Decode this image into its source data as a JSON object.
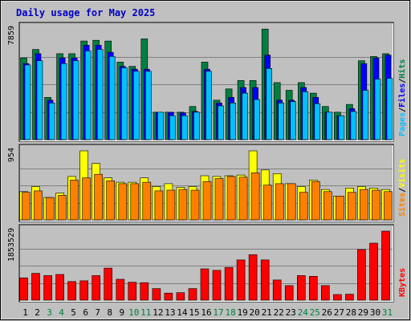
{
  "colors": {
    "background": "#c0c0c0",
    "title": "#0000c0",
    "hits": "#008040",
    "files": "#0000ff",
    "pages": "#00c0ff",
    "visits": "#ffff00",
    "sites": "#ff8000",
    "kbytes": "#ff0000",
    "weekend_day": "#008040",
    "weekday": "#000000"
  },
  "chart_data": {
    "type": "bar",
    "title": "Daily usage for May 2025",
    "days": [
      "1",
      "2",
      "3",
      "4",
      "5",
      "6",
      "7",
      "8",
      "9",
      "10",
      "11",
      "12",
      "13",
      "14",
      "15",
      "16",
      "17",
      "18",
      "19",
      "20",
      "21",
      "22",
      "23",
      "24",
      "25",
      "26",
      "27",
      "28",
      "29",
      "30",
      "31"
    ],
    "weekend_days": [
      "3",
      "4",
      "10",
      "11",
      "17",
      "18",
      "24",
      "25",
      "31"
    ],
    "panels": [
      {
        "name": "hits-files-pages",
        "max_label": "7859",
        "ymax": 7859,
        "legend": [
          "Pages",
          "/",
          "Files",
          "/",
          "Hits"
        ],
        "series": [
          {
            "name": "Hits",
            "values": [
              5800,
              6400,
              3000,
              6100,
              6100,
              7000,
              7050,
              7000,
              5500,
              5200,
              7150,
              1950,
              1950,
              1950,
              2350,
              5500,
              2800,
              3600,
              4200,
              4200,
              7850,
              4050,
              3500,
              4050,
              3300,
              2350,
              1950,
              2500,
              5600,
              5900,
              6100
            ]
          },
          {
            "name": "Files",
            "values": [
              5400,
              6100,
              2800,
              5800,
              5800,
              6700,
              6700,
              6200,
              5200,
              5000,
              5000,
              1950,
              1950,
              1900,
              2000,
              5000,
              2600,
              3000,
              3700,
              3700,
              6000,
              2800,
              2800,
              3700,
              3000,
              1950,
              1700,
              2200,
              5400,
              5800,
              6000
            ]
          },
          {
            "name": "Pages",
            "values": [
              5300,
              5600,
              2600,
              5400,
              5600,
              6300,
              6400,
              5900,
              5100,
              4850,
              4850,
              1950,
              1700,
              1700,
              1950,
              4850,
              2400,
              2600,
              3300,
              2850,
              5050,
              2600,
              2700,
              3400,
              2550,
              1950,
              1700,
              2000,
              3500,
              4300,
              4350
            ]
          }
        ]
      },
      {
        "name": "visits-sites",
        "max_label": "954",
        "ymax": 954,
        "legend": [
          "Sites",
          "/",
          "Visits"
        ],
        "series": [
          {
            "name": "Visits",
            "values": [
              390,
              460,
              310,
              370,
              600,
              954,
              780,
              580,
              520,
              520,
              580,
              460,
              500,
              450,
              460,
              610,
              600,
              610,
              620,
              954,
              690,
              640,
              500,
              460,
              550,
              420,
              330,
              440,
              460,
              440,
              420
            ]
          },
          {
            "name": "Sites",
            "values": [
              380,
              400,
              310,
              340,
              550,
              580,
              630,
              540,
              500,
              500,
              520,
              400,
              410,
              420,
              410,
              530,
              570,
              600,
              590,
              650,
              480,
              500,
              500,
              380,
              530,
              390,
              330,
              380,
              420,
              410,
              390
            ]
          }
        ]
      },
      {
        "name": "kbytes",
        "max_label": "1853529",
        "ymax": 1853529,
        "legend": [
          "KBytes"
        ],
        "series": [
          {
            "name": "KBytes",
            "values": [
              600000,
              720000,
              660000,
              690000,
              500000,
              520000,
              660000,
              860000,
              560000,
              480000,
              470000,
              310000,
              190000,
              200000,
              310000,
              840000,
              800000,
              880000,
              1080000,
              1220000,
              1080000,
              540000,
              390000,
              660000,
              640000,
              390000,
              150000,
              160000,
              1360000,
              1530000,
              1853529
            ]
          }
        ]
      }
    ]
  }
}
